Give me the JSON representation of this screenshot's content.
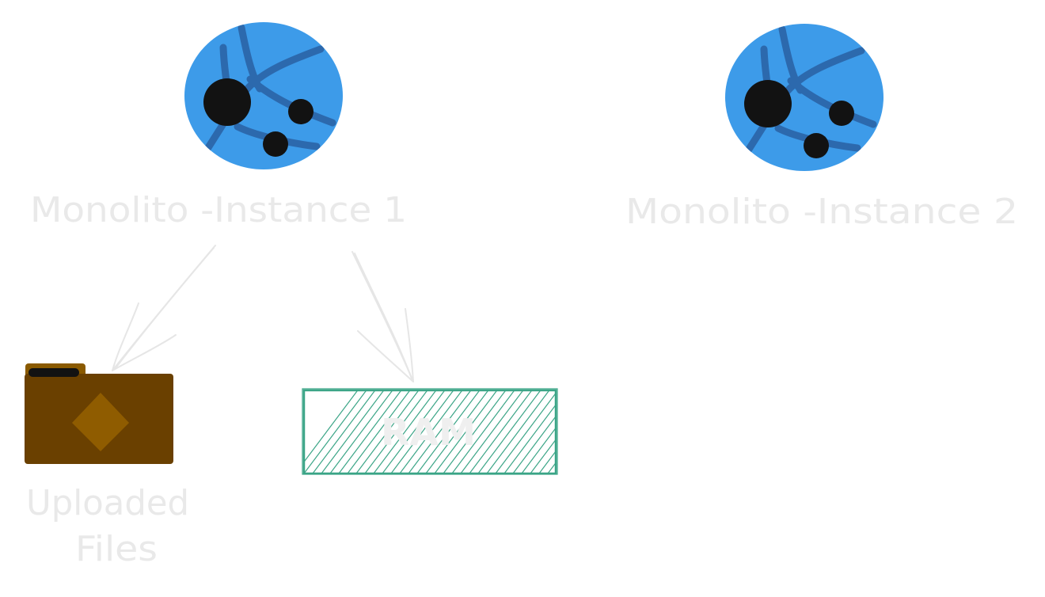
{
  "nodes": {
    "instance1": {
      "label": "Monolito -Instance 1",
      "icon": "globe-network-icon"
    },
    "instance2": {
      "label": "Monolito -Instance 2",
      "icon": "globe-network-icon"
    },
    "files": {
      "label_line1": "Uploaded",
      "label_line2": "Files",
      "icon": "folder-icon"
    },
    "ram": {
      "label": "RAM"
    }
  },
  "colors": {
    "globe": "#3d9be9",
    "globe_lines": "#2c69ad",
    "globe_dots": "#121212",
    "folder_body": "#6a4000",
    "folder_tab": "#8a5a00",
    "folder_diamond": "#8f5c00",
    "ram_stroke": "#3aa486",
    "label_text": "#e9e9e9",
    "arrow": "#e6e6e6"
  }
}
